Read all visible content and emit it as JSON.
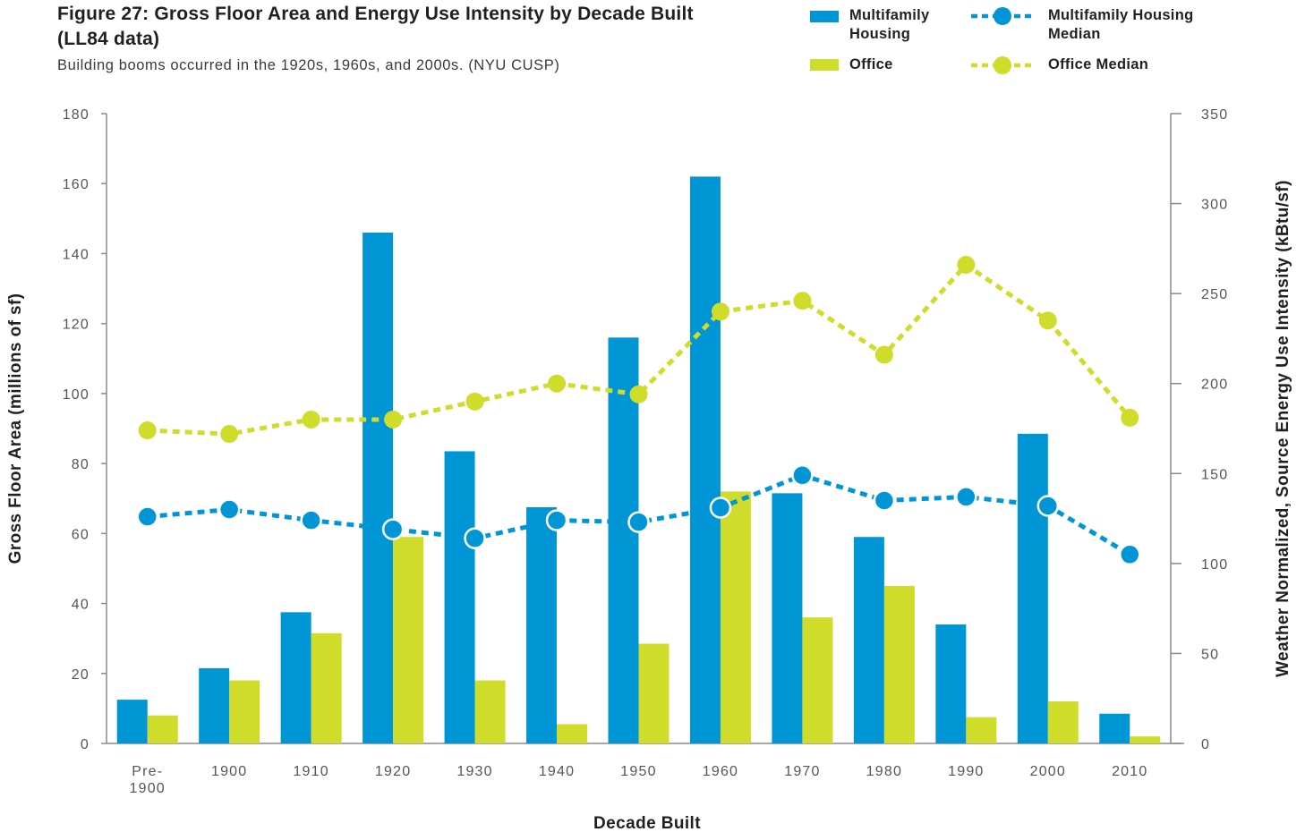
{
  "title": "Figure 27: Gross Floor Area and Energy Use Intensity by Decade Built (LL84 data)",
  "subtitle": "Building booms occurred in the 1920s, 1960s, and 2000s. (NYU CUSP)",
  "colors": {
    "multifamily": "#0096d6",
    "office": "#cfdc2a",
    "axis": "#8a8a8a"
  },
  "legend": {
    "multifamily": "Multifamily Housing",
    "office": "Office",
    "multifamily_median": "Multifamily Housing Median",
    "office_median": "Office Median"
  },
  "chart_data": {
    "type": "bar",
    "title": "Figure 27: Gross Floor Area and Energy Use Intensity by Decade Built (LL84 data)",
    "subtitle": "Building booms occurred in the 1920s, 1960s, and 2000s. (NYU CUSP)",
    "xlabel": "Decade Built",
    "ylabel": "Gross Floor Area (millions of sf)",
    "y2label": "Weather Normalized, Source Energy Use Intensity (kBtu/sf)",
    "categories": [
      "Pre-1900",
      "1900",
      "1910",
      "1920",
      "1930",
      "1940",
      "1950",
      "1960",
      "1970",
      "1980",
      "1990",
      "2000",
      "2010"
    ],
    "ylim": [
      0,
      180
    ],
    "yticks": [
      0,
      20,
      40,
      60,
      80,
      100,
      120,
      140,
      160,
      180
    ],
    "y2lim": [
      0,
      350
    ],
    "y2ticks": [
      0,
      50,
      100,
      150,
      200,
      250,
      300,
      350
    ],
    "grid": false,
    "legend_position": "top-right",
    "series": [
      {
        "name": "Multifamily Housing",
        "type": "bar",
        "axis": "left",
        "values": [
          12.5,
          21.5,
          37.5,
          146,
          83.5,
          67.5,
          116,
          162,
          71.5,
          59,
          34,
          88.5,
          8.5
        ]
      },
      {
        "name": "Office",
        "type": "bar",
        "axis": "left",
        "values": [
          8,
          18,
          31.5,
          59,
          18,
          5.5,
          28.5,
          72,
          36,
          45,
          7.5,
          12,
          2
        ]
      },
      {
        "name": "Multifamily Housing Median",
        "type": "line",
        "axis": "right",
        "values": [
          126,
          130,
          124,
          119,
          114,
          124,
          123,
          131,
          149,
          135,
          137,
          132,
          105
        ]
      },
      {
        "name": "Office Median",
        "type": "line",
        "axis": "right",
        "values": [
          174,
          172,
          180,
          180,
          190,
          200,
          194,
          240,
          246,
          216,
          266,
          235,
          181
        ]
      }
    ]
  }
}
